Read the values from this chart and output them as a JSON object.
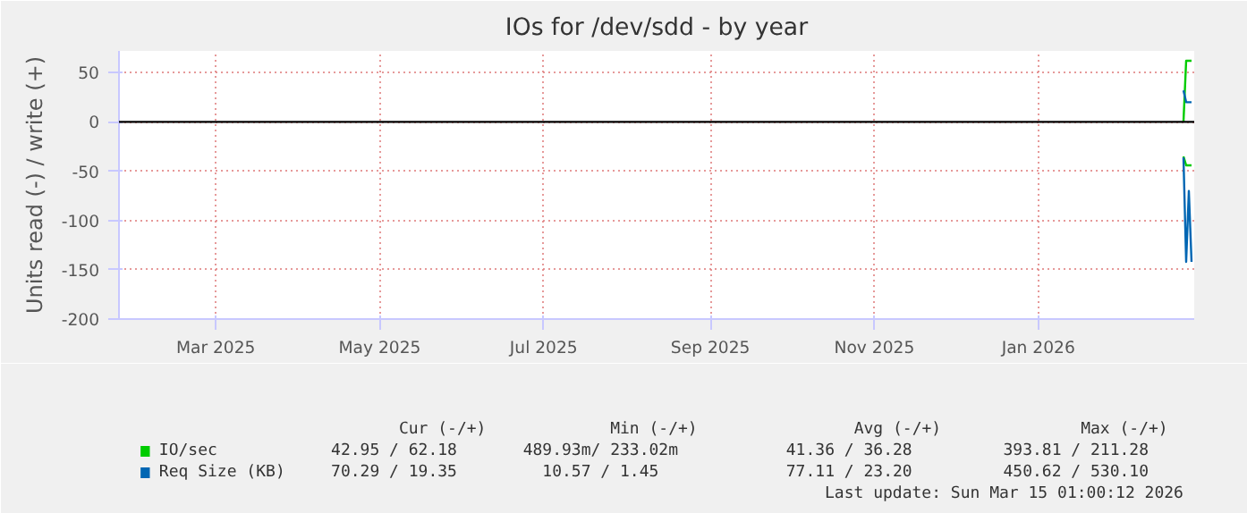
{
  "chart_data": {
    "type": "line",
    "title": "IOs for /dev/sdd - by year",
    "ylabel": "Units read (-) / write (+)",
    "xlim": [
      "2025-02-08",
      "2026-03-15"
    ],
    "ylim": [
      -200,
      72
    ],
    "xticks": [
      {
        "value": "2025-03-16",
        "label": "Mar 2025"
      },
      {
        "value": "2025-05-16",
        "label": "May 2025"
      },
      {
        "value": "2025-07-16",
        "label": "Jul 2025"
      },
      {
        "value": "2025-09-16",
        "label": "Sep 2025"
      },
      {
        "value": "2025-11-16",
        "label": "Nov 2025"
      },
      {
        "value": "2026-01-16",
        "label": "Jan 2026"
      }
    ],
    "yticks": [
      -200,
      -150,
      -100,
      -50,
      0,
      50
    ],
    "grid": true,
    "legend": "bottom",
    "series": [
      {
        "name": "IO/sec",
        "color": "#00cc00",
        "x": [
          "2026-03-11",
          "2026-03-12",
          "2026-03-14"
        ],
        "values": [
          0,
          62,
          62
        ]
      },
      {
        "name": "Req Size (KB)",
        "color": "#0066b3",
        "x": [
          "2026-03-11",
          "2026-03-12",
          "2026-03-14"
        ],
        "values": [
          32,
          20,
          20
        ]
      },
      {
        "color": "#00cc00",
        "x": [
          "2026-03-11",
          "2026-03-12",
          "2026-03-14"
        ],
        "values": [
          -35,
          -44,
          -44
        ]
      },
      {
        "color": "#0066b3",
        "x": [
          "2026-03-11",
          "2026-03-12",
          "2026-03-13",
          "2026-03-14"
        ],
        "values": [
          -36,
          -142,
          -70,
          -142
        ]
      }
    ],
    "ref_lines": [
      {
        "axis": "y",
        "value": 0,
        "color": "#000000"
      }
    ],
    "annotations": [
      "Cur (-/+)",
      "Min (-/+)",
      "Avg (-/+)",
      "Max (-/+)",
      "42.95 /    62.18",
      "489.93m/   233.02m",
      "41.36 /    36.28",
      "393.81 /   211.28",
      "70.29 /    19.35",
      "10.57 /     1.45",
      "77.11 /    23.20",
      "450.62 /   530.10",
      "Last update: Sun Mar 15 01:00:12 2026"
    ]
  }
}
